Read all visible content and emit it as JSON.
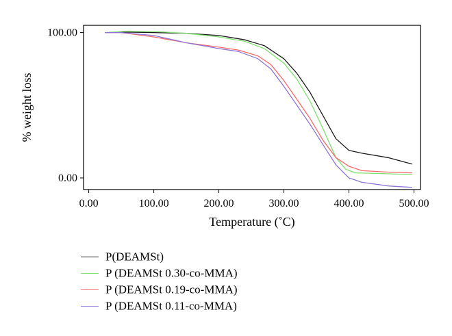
{
  "chart_data": {
    "type": "line",
    "xlabel": "Temperature (˚C)",
    "ylabel": "% weight loss",
    "xlim": [
      -8,
      510
    ],
    "ylim": [
      -8,
      105
    ],
    "x_ticks": [
      0,
      100,
      200,
      300,
      400,
      500
    ],
    "x_tick_labels": [
      "0.00",
      "100.00",
      "200.00",
      "300.00",
      "400.00",
      "500.00"
    ],
    "y_ticks": [
      0,
      100
    ],
    "y_tick_labels": [
      "0.00",
      "100.00"
    ],
    "legend_position": "bottom-left (below plot)",
    "series": [
      {
        "name": "P(DEAMSt)",
        "color": "#1a1a1a",
        "points": [
          [
            25,
            100
          ],
          [
            60,
            100.3
          ],
          [
            100,
            100
          ],
          [
            150,
            99.5
          ],
          [
            200,
            98
          ],
          [
            240,
            95
          ],
          [
            270,
            91
          ],
          [
            300,
            82
          ],
          [
            320,
            72
          ],
          [
            340,
            59
          ],
          [
            360,
            43
          ],
          [
            380,
            27
          ],
          [
            400,
            19
          ],
          [
            420,
            17
          ],
          [
            460,
            14
          ],
          [
            497,
            9.5
          ]
        ]
      },
      {
        "name": "P (DEAMSt 0.30-co-MMA)",
        "color": "#7ee06e",
        "points": [
          [
            25,
            100
          ],
          [
            60,
            101
          ],
          [
            100,
            100.8
          ],
          [
            150,
            99.5
          ],
          [
            200,
            97
          ],
          [
            240,
            94
          ],
          [
            270,
            89
          ],
          [
            300,
            79
          ],
          [
            320,
            68
          ],
          [
            340,
            53
          ],
          [
            360,
            34
          ],
          [
            380,
            14
          ],
          [
            395,
            6
          ],
          [
            410,
            3.5
          ],
          [
            450,
            3
          ],
          [
            497,
            2.3
          ]
        ]
      },
      {
        "name": "P (DEAMSt 0.19-co-MMA)",
        "color": "#f46a6a",
        "points": [
          [
            25,
            100
          ],
          [
            50,
            100
          ],
          [
            100,
            97
          ],
          [
            150,
            93
          ],
          [
            200,
            90
          ],
          [
            230,
            88
          ],
          [
            260,
            84
          ],
          [
            280,
            78
          ],
          [
            300,
            67
          ],
          [
            320,
            54
          ],
          [
            340,
            41
          ],
          [
            360,
            26
          ],
          [
            380,
            14
          ],
          [
            400,
            8
          ],
          [
            420,
            5
          ],
          [
            460,
            4
          ],
          [
            497,
            3.5
          ]
        ]
      },
      {
        "name": "P (DEAMSt 0.11-co-MMA)",
        "color": "#8c74d8",
        "points": [
          [
            25,
            100
          ],
          [
            50,
            100
          ],
          [
            100,
            98
          ],
          [
            150,
            93
          ],
          [
            200,
            89
          ],
          [
            230,
            87
          ],
          [
            260,
            82
          ],
          [
            280,
            75
          ],
          [
            300,
            63
          ],
          [
            320,
            50
          ],
          [
            340,
            37
          ],
          [
            360,
            23
          ],
          [
            380,
            9
          ],
          [
            400,
            0
          ],
          [
            420,
            -3
          ],
          [
            460,
            -5.5
          ],
          [
            497,
            -6.5
          ]
        ]
      }
    ]
  }
}
